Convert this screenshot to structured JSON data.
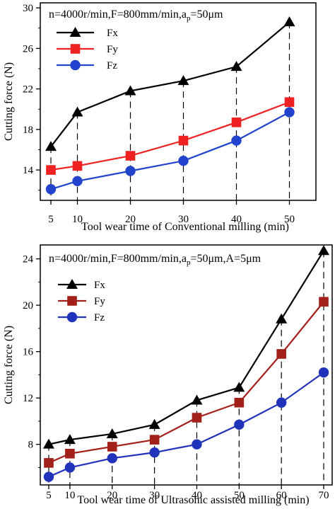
{
  "chart_data": [
    {
      "type": "line",
      "annotation": "n=4000r/min,F=800mm/min,a",
      "annotation_sub": "p",
      "annotation_tail": "=50μm",
      "xlabel": "Tool wear time of Conventional milling (min)",
      "ylabel": "Cutting force (N)",
      "x": [
        5,
        10,
        20,
        30,
        40,
        50
      ],
      "xlim": [
        3,
        55
      ],
      "ylim": [
        11,
        30.5
      ],
      "yticks": [
        14,
        18,
        22,
        26,
        30
      ],
      "grid": false,
      "legend_position": "top-left",
      "dashed_drop_lines": true,
      "series": [
        {
          "name": "Fx",
          "marker": "triangle",
          "color": "#000000",
          "values": [
            16.3,
            19.7,
            21.8,
            22.8,
            24.2,
            28.6
          ]
        },
        {
          "name": "Fy",
          "marker": "square",
          "color": "#ee2222",
          "values": [
            14.0,
            14.4,
            15.4,
            16.9,
            18.7,
            20.7
          ]
        },
        {
          "name": "Fz",
          "marker": "circle",
          "color": "#2244cc",
          "values": [
            12.1,
            12.9,
            13.9,
            14.9,
            16.9,
            19.7
          ]
        }
      ]
    },
    {
      "type": "line",
      "annotation": "n=4000r/min,F=800mm/min,a",
      "annotation_sub": "p",
      "annotation_tail": "=50μm,A=5μm",
      "xlabel": "Tool wear time of Ultrasonic assisted milling (min)",
      "ylabel": "Cutting force (N)",
      "x": [
        5,
        10,
        20,
        30,
        40,
        50,
        60,
        70
      ],
      "xlim": [
        3,
        72
      ],
      "ylim": [
        4.5,
        25.2
      ],
      "yticks": [
        8,
        12,
        16,
        20,
        24
      ],
      "grid": false,
      "legend_position": "top-left",
      "dashed_drop_lines": true,
      "series": [
        {
          "name": "Fx",
          "marker": "triangle",
          "color": "#000000",
          "values": [
            8.0,
            8.4,
            8.9,
            9.7,
            11.8,
            12.9,
            18.8,
            24.7
          ]
        },
        {
          "name": "Fy",
          "marker": "square",
          "color": "#a3201a",
          "values": [
            6.4,
            7.2,
            7.8,
            8.4,
            10.3,
            11.6,
            15.8,
            20.3
          ]
        },
        {
          "name": "Fz",
          "marker": "circle",
          "color": "#2233bb",
          "values": [
            5.2,
            6.0,
            6.8,
            7.3,
            8.0,
            9.7,
            11.6,
            14.2
          ]
        }
      ]
    }
  ]
}
